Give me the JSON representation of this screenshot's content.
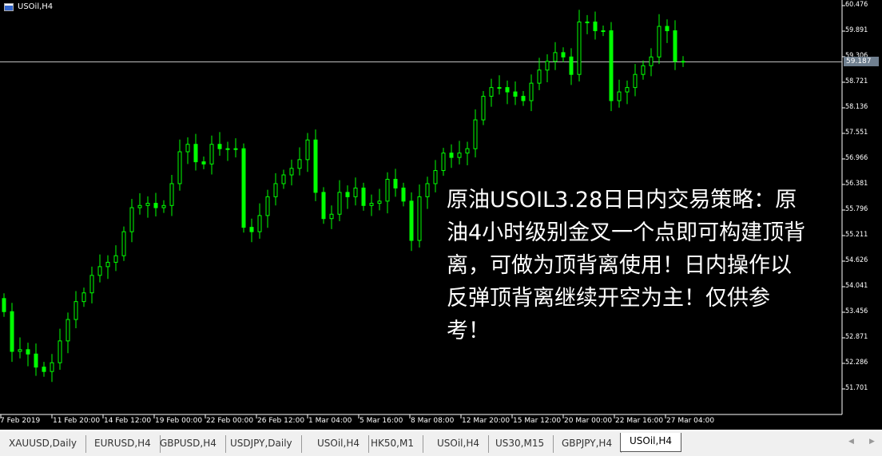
{
  "window": {
    "title": "USOil,H4"
  },
  "colors": {
    "background": "#000000",
    "candle": "#00ff00",
    "grid_text": "#ffffff",
    "current_price_bg": "#708090",
    "bid_line": "#c0c0c0"
  },
  "chart_data": {
    "type": "candlestick",
    "symbol": "USOil",
    "timeframe": "H4",
    "ylim": [
      51.35,
      60.7
    ],
    "price_ticks": [
      "60.476",
      "59.891",
      "59.306",
      "58.721",
      "58.136",
      "57.551",
      "56.966",
      "56.381",
      "55.796",
      "55.211",
      "54.626",
      "54.041",
      "53.456",
      "52.871",
      "52.286",
      "51.701"
    ],
    "current_price": "59.187",
    "time_ticks": [
      "7 Feb 2019",
      "11 Feb 20:00",
      "14 Feb 12:00",
      "19 Feb 00:00",
      "22 Feb 00:00",
      "26 Feb 12:00",
      "1 Mar 04:00",
      "5 Mar 16:00",
      "8 Mar 08:00",
      "12 Mar 20:00",
      "15 Mar 12:00",
      "20 Mar 00:00",
      "22 Mar 16:00",
      "27 Mar 04:00"
    ],
    "closes": [
      53.47,
      52.56,
      52.6,
      52.5,
      52.2,
      52.1,
      52.3,
      52.8,
      53.29,
      53.7,
      53.9,
      54.3,
      54.5,
      54.6,
      54.75,
      55.3,
      55.85,
      55.9,
      55.95,
      55.85,
      55.9,
      56.4,
      57.13,
      57.3,
      56.9,
      56.85,
      57.3,
      57.2,
      57.2,
      57.2,
      55.4,
      55.3,
      55.67,
      56.1,
      56.4,
      56.6,
      56.75,
      56.95,
      57.4,
      56.2,
      55.6,
      55.7,
      56.2,
      56.1,
      56.3,
      55.9,
      55.95,
      56.0,
      56.5,
      56.3,
      56.0,
      55.1,
      56.1,
      56.4,
      56.7,
      57.1,
      57.0,
      57.1,
      57.2,
      57.86,
      58.4,
      58.6,
      58.6,
      58.5,
      58.4,
      58.3,
      58.7,
      59.0,
      59.2,
      59.4,
      59.3,
      58.9,
      60.1,
      60.1,
      59.9,
      59.9,
      58.3,
      58.5,
      58.6,
      58.9,
      59.1,
      59.3,
      60.0,
      59.9,
      59.2,
      59.19
    ]
  },
  "overlay": {
    "lines": [
      "原油USOIL3.28日日内交易策略：原",
      "油4小时级别金叉一个点即可构建顶背",
      "离，可做为顶背离使用！日内操作以",
      "反弹顶背离继续开空为主！仅供参",
      "考！"
    ]
  },
  "tabs": [
    {
      "label": "XAUUSD,Daily"
    },
    {
      "label": "EURUSD,H4"
    },
    {
      "label": "GBPUSD,H4"
    },
    {
      "label": "USDJPY,Daily"
    },
    {
      "label": "USOil,H4"
    },
    {
      "label": "HK50,M1"
    },
    {
      "label": "USOil,H4"
    },
    {
      "label": "US30,M15"
    },
    {
      "label": "GBPJPY,H4"
    },
    {
      "label": "USOil,H4",
      "active": true
    }
  ],
  "icons": {
    "scroll_left": "triangle-left-icon",
    "scroll_right": "triangle-right-icon"
  }
}
